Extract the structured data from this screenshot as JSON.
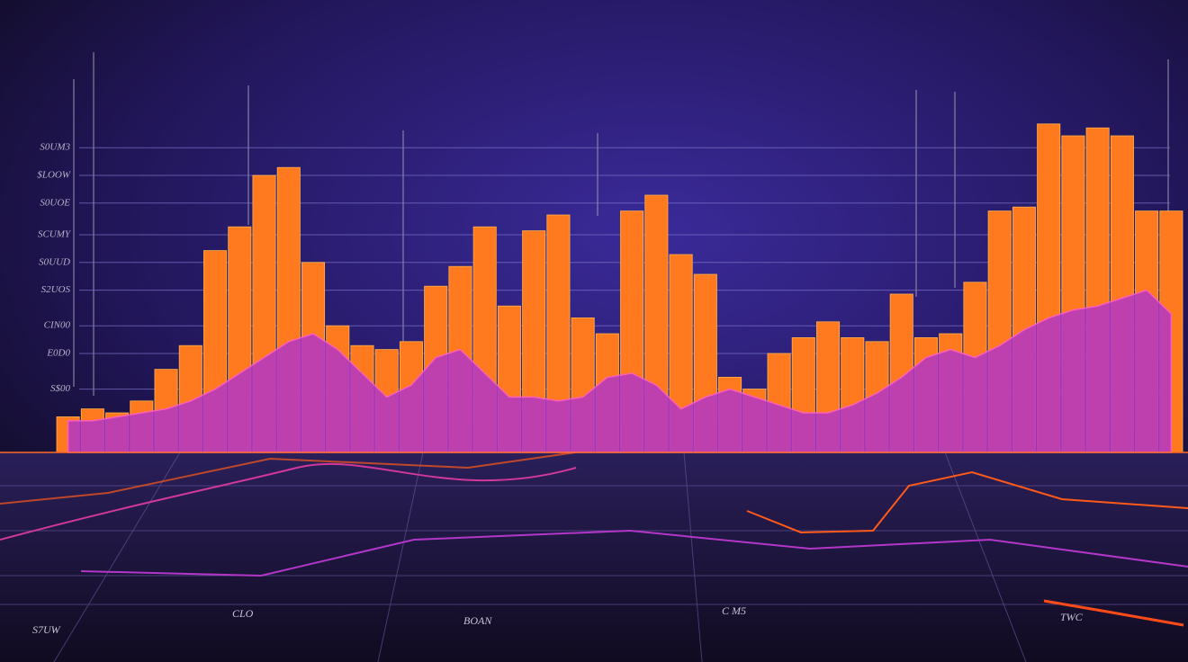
{
  "chart_data": {
    "type": "bar",
    "categories": [
      null,
      null,
      null,
      null,
      null,
      null,
      null,
      null,
      null,
      null,
      null,
      null,
      null,
      null,
      null,
      null,
      null,
      null,
      null,
      null,
      null,
      null,
      null,
      null,
      null,
      null,
      null,
      null,
      null,
      null,
      null,
      null,
      null,
      null,
      null,
      null,
      null,
      null,
      null,
      null,
      null,
      null,
      null,
      null,
      null,
      null
    ],
    "series": [
      {
        "type": "bar",
        "color": "#ff7a1f",
        "values": [
          9,
          11,
          10,
          13,
          21,
          27,
          51,
          57,
          70,
          72,
          48,
          32,
          27,
          26,
          28,
          42,
          47,
          57,
          37,
          56,
          60,
          34,
          30,
          61,
          65,
          50,
          45,
          19,
          16,
          25,
          29,
          33,
          29,
          28,
          40,
          29,
          30,
          43,
          61,
          62,
          83,
          80,
          82,
          80,
          61,
          61
        ]
      },
      {
        "type": "area",
        "color": "#b236c8",
        "values": [
          8,
          8,
          9,
          10,
          11,
          13,
          16,
          20,
          24,
          28,
          30,
          26,
          20,
          14,
          17,
          24,
          26,
          20,
          14,
          14,
          13,
          14,
          19,
          20,
          17,
          11,
          14,
          16,
          14,
          12,
          10,
          10,
          12,
          15,
          19,
          24,
          26,
          24,
          27,
          31,
          34,
          36,
          37,
          39,
          41,
          35
        ]
      }
    ],
    "ylim": [
      0,
      100
    ],
    "yticks": [
      {
        "value": 77,
        "label": "S0UM3"
      },
      {
        "value": 70,
        "label": "$LOOW"
      },
      {
        "value": 63,
        "label": "S0UOE"
      },
      {
        "value": 55,
        "label": "SCUMY"
      },
      {
        "value": 48,
        "label": "S0UUD"
      },
      {
        "value": 41,
        "label": "S2UOS"
      },
      {
        "value": 32,
        "label": "CIN00"
      },
      {
        "value": 25,
        "label": "E0D0"
      },
      {
        "value": 16,
        "label": "S$00"
      }
    ],
    "grid": true,
    "annotations": [
      "S7UW",
      "CLO",
      "BOAN",
      "C M5",
      "TWC"
    ]
  }
}
